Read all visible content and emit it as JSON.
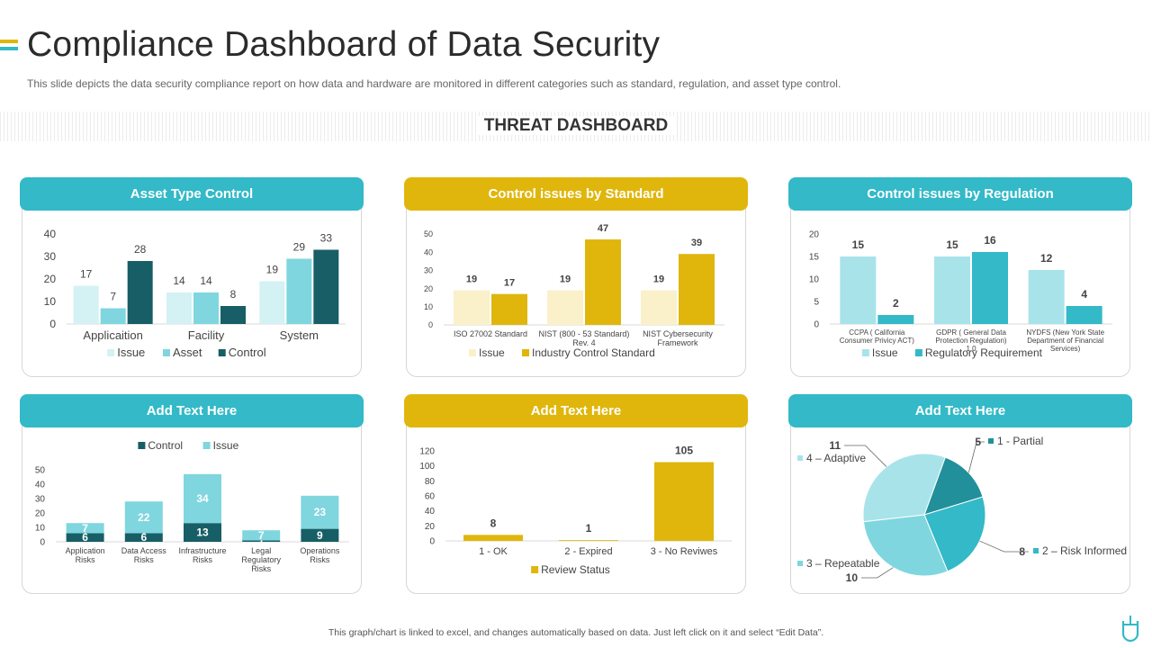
{
  "colors": {
    "teal": "#33b9c7",
    "gold": "#e0b60c",
    "dark_teal": "#175e66",
    "mid_teal": "#7fd6df",
    "light_teal": "#a8e3ea",
    "pale_teal": "#d4f1f4",
    "pale_gold": "#faf0c9",
    "pie_dark": "#22909a",
    "pie_bright": "#33b9c7",
    "pie_light": "#a8e3ea",
    "pie_mid": "#7fd6df"
  },
  "page": {
    "title": "Compliance Dashboard of Data Security",
    "subtitle": "This slide depicts the data security compliance report on how data and hardware are monitored in different categories such as standard, regulation, and asset type control.",
    "section_title": "THREAT DASHBOARD",
    "footer": "This graph/chart is linked to excel, and changes automatically based on data. Just left click on it and select “Edit Data”."
  },
  "panels": {
    "p1": {
      "header": "Asset Type Control"
    },
    "p2": {
      "header": "Control issues by Standard"
    },
    "p3": {
      "header": "Control issues by Regulation"
    },
    "p4": {
      "header": "Add Text Here"
    },
    "p5": {
      "header": "Add Text Here"
    },
    "p6": {
      "header": "Add Text Here"
    }
  },
  "chart_data": [
    {
      "id": "asset_type_control",
      "type": "bar",
      "categories": [
        "Applicaition",
        "Facility",
        "System"
      ],
      "series": [
        {
          "name": "Issue",
          "color": "#d4f1f4",
          "values": [
            17,
            14,
            19
          ]
        },
        {
          "name": "Asset",
          "color": "#7fd6df",
          "values": [
            7,
            14,
            29
          ]
        },
        {
          "name": "Control",
          "color": "#175e66",
          "values": [
            28,
            8,
            33
          ]
        }
      ],
      "ylim": [
        0,
        40
      ],
      "yticks": [
        0,
        10,
        20,
        30,
        40
      ],
      "legend": "bottom"
    },
    {
      "id": "control_issues_by_standard",
      "type": "bar",
      "categories": [
        "ISO 27002 Standard",
        "NIST (800 - 53 Standard) Rev. 4",
        "NIST Cybersecurity Framework"
      ],
      "series": [
        {
          "name": "Issue",
          "color": "#faf0c9",
          "values": [
            19,
            19,
            19
          ]
        },
        {
          "name": "Industry Control Standard",
          "color": "#e0b60c",
          "values": [
            17,
            47,
            39
          ]
        }
      ],
      "ylim": [
        0,
        50
      ],
      "yticks": [
        0,
        10,
        20,
        30,
        40,
        50
      ],
      "legend": "bottom"
    },
    {
      "id": "control_issues_by_regulation",
      "type": "bar",
      "categories": [
        "CCPA ( California Consumer Privicy ACT)",
        "GDPR ( General Data Protection Regulation) 1.0",
        "NYDFS (New York State Department of Financial Services)"
      ],
      "series": [
        {
          "name": "Issue",
          "color": "#a8e3ea",
          "values": [
            15,
            15,
            12
          ]
        },
        {
          "name": "Regulatory Requirement",
          "color": "#33b9c7",
          "values": [
            2,
            16,
            4
          ]
        }
      ],
      "ylim": [
        0,
        20
      ],
      "yticks": [
        0,
        5,
        10,
        15,
        20
      ],
      "legend": "bottom"
    },
    {
      "id": "risks_stacked",
      "type": "bar",
      "stacked": true,
      "categories": [
        "Application Risks",
        "Data Access Risks",
        "Infrastructure Risks",
        "Legal Regulatory Risks",
        "Operations Risks"
      ],
      "series": [
        {
          "name": "Control",
          "color": "#175e66",
          "values": [
            6,
            6,
            13,
            1,
            9
          ]
        },
        {
          "name": "Issue",
          "color": "#7fd6df",
          "values": [
            7,
            22,
            34,
            7,
            23
          ]
        }
      ],
      "ylim": [
        0,
        50
      ],
      "yticks": [
        0,
        10,
        20,
        30,
        40,
        50
      ],
      "legend": "top"
    },
    {
      "id": "review_status",
      "type": "bar",
      "categories": [
        "1 - OK",
        "2 - Expired",
        "3 - No Reviwes"
      ],
      "series": [
        {
          "name": "Review Status",
          "color": "#e0b60c",
          "values": [
            8,
            1,
            105
          ]
        }
      ],
      "ylim": [
        0,
        120
      ],
      "yticks": [
        0,
        20,
        40,
        60,
        80,
        100,
        120
      ],
      "legend": "bottom"
    },
    {
      "id": "maturity_pie",
      "type": "pie",
      "slices": [
        {
          "label": "1 - Partial",
          "value": 5,
          "color": "#22909a"
        },
        {
          "label": "2 – Risk Informed",
          "value": 8,
          "color": "#33b9c7"
        },
        {
          "label": "3 – Repeatable",
          "value": 10,
          "color": "#7fd6df"
        },
        {
          "label": "4 – Adaptive",
          "value": 11,
          "color": "#a8e3ea"
        }
      ]
    }
  ]
}
